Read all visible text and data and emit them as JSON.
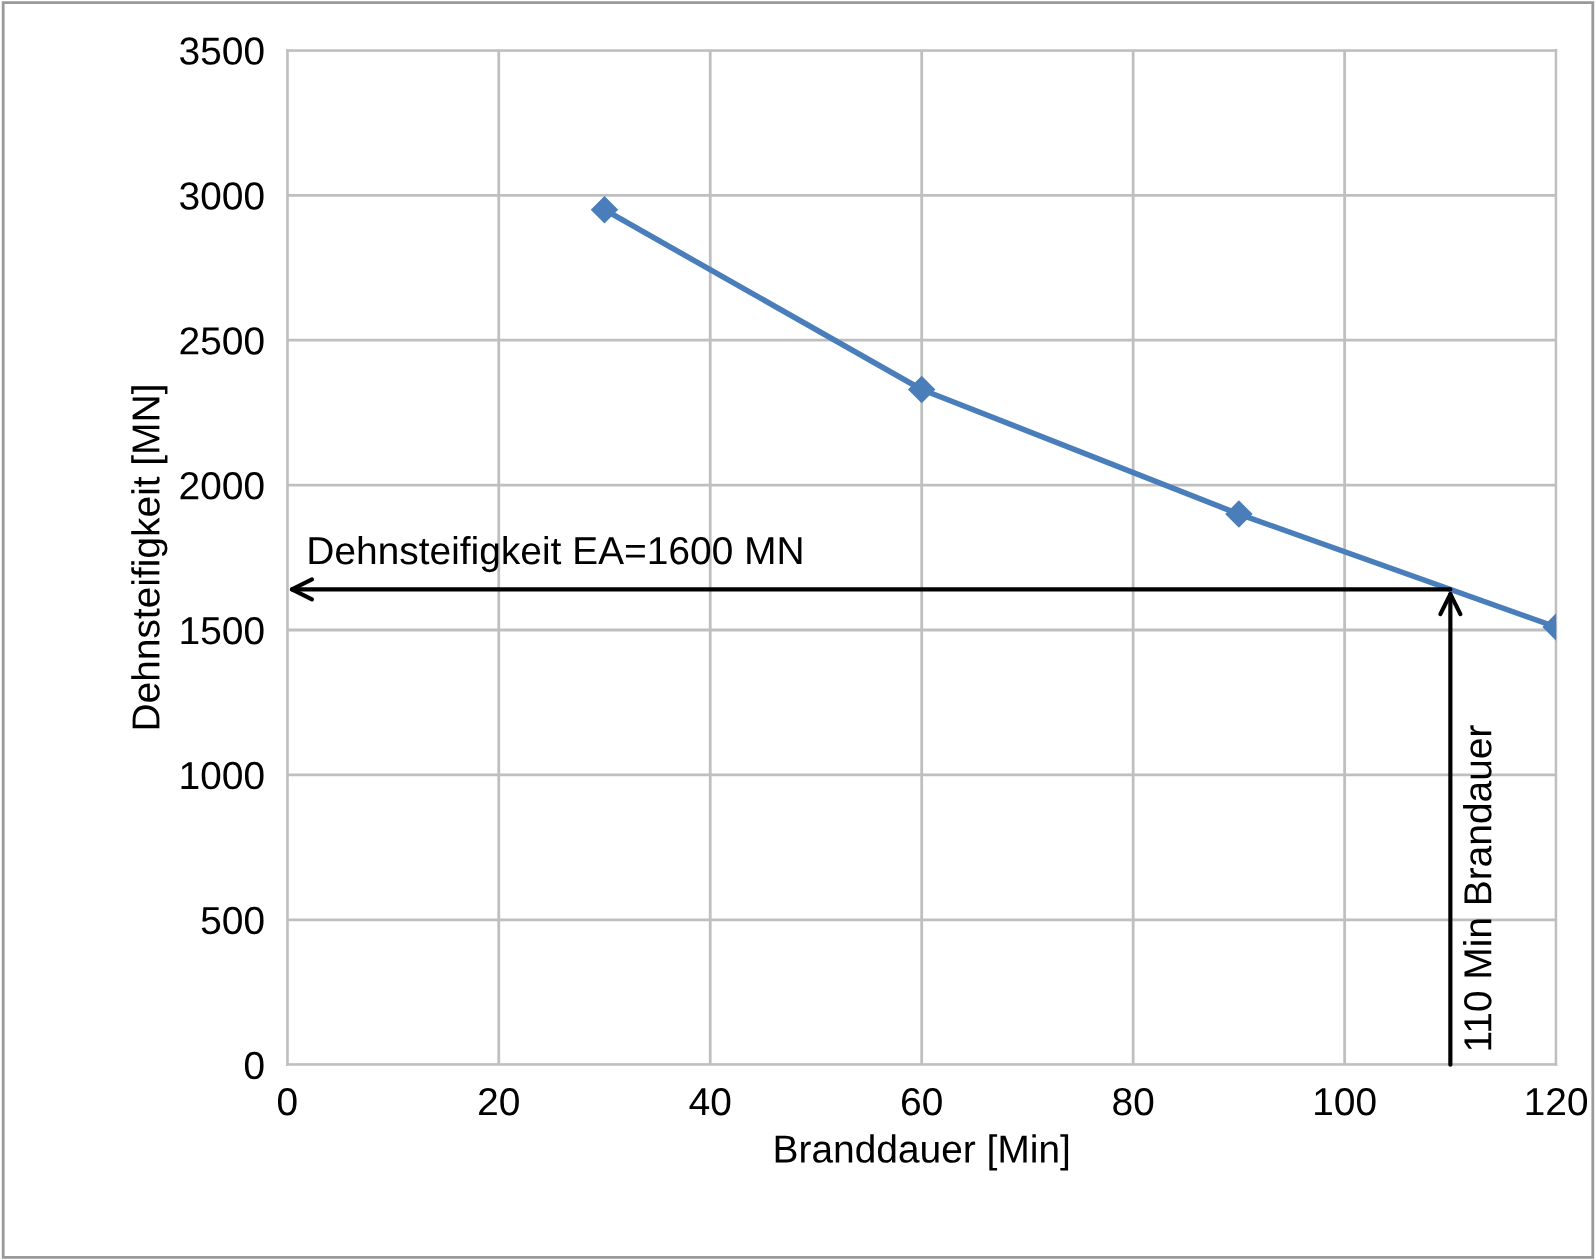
{
  "chart_data": {
    "type": "line",
    "xlabel": "Branddauer [Min]",
    "ylabel": "Dehnsteifigkeit [MN]",
    "x": [
      30,
      60,
      90,
      120
    ],
    "series": [
      {
        "color": "#4a7ebb",
        "values": [
          2950,
          2330,
          1900,
          1510
        ]
      }
    ],
    "xlim": [
      0,
      120
    ],
    "xticks": [
      0,
      20,
      40,
      60,
      80,
      100,
      120
    ],
    "ylim": [
      0,
      3500
    ],
    "yticks": [
      0,
      500,
      1000,
      1500,
      2000,
      2500,
      3000,
      3500
    ],
    "grid": true,
    "marker": "diamond",
    "line_style": "solid",
    "annotations": [
      {
        "text": "Dehnsteifigkeit EA=1600 MN",
        "x": 110,
        "y": 1640
      },
      {
        "text": "110 Min Brandauer",
        "x": 110,
        "y": 1640
      }
    ]
  }
}
